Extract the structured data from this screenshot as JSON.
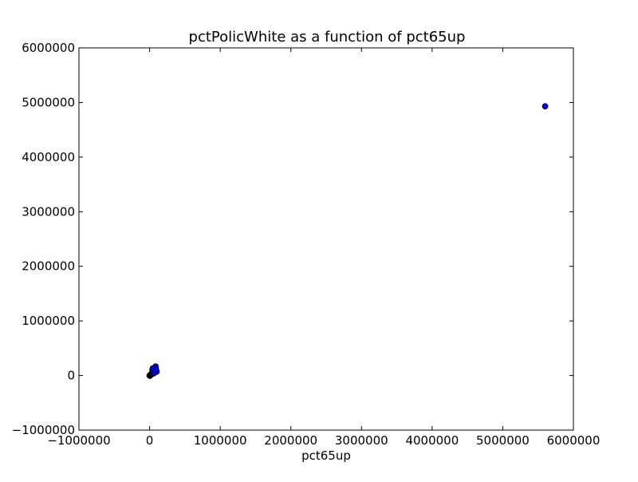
{
  "chart_data": {
    "type": "scatter",
    "title": "pctPolicWhite as a function of pct65up",
    "xlabel": "pct65up",
    "ylabel": "",
    "xlim": [
      -1000000,
      6000000
    ],
    "ylim": [
      -1000000,
      6000000
    ],
    "x_ticks": [
      -1000000,
      0,
      1000000,
      2000000,
      3000000,
      4000000,
      5000000,
      6000000
    ],
    "y_ticks": [
      -1000000,
      0,
      1000000,
      2000000,
      3000000,
      4000000,
      5000000,
      6000000
    ],
    "x_tick_labels": [
      "−1000000",
      "0",
      "1000000",
      "2000000",
      "3000000",
      "4000000",
      "5000000",
      "6000000"
    ],
    "y_tick_labels": [
      "−1000000",
      "0",
      "1000000",
      "2000000",
      "3000000",
      "4000000",
      "5000000",
      "6000000"
    ],
    "grid": false,
    "marker_color": "#0000ff",
    "marker_edge_color": "#000000",
    "points": [
      {
        "x": 5600000,
        "y": 4930000
      },
      {
        "x": 0,
        "y": 0
      },
      {
        "x": 5000,
        "y": -5000
      },
      {
        "x": 8000,
        "y": 5000
      },
      {
        "x": 12000,
        "y": 8000
      },
      {
        "x": 15000,
        "y": 15000
      },
      {
        "x": 20000,
        "y": 20000
      },
      {
        "x": 25000,
        "y": 25000
      },
      {
        "x": 30000,
        "y": 35000
      },
      {
        "x": 35000,
        "y": 40000
      },
      {
        "x": 40000,
        "y": 50000
      },
      {
        "x": 45000,
        "y": 60000
      },
      {
        "x": 50000,
        "y": 70000
      },
      {
        "x": 55000,
        "y": 80000
      },
      {
        "x": 60000,
        "y": 95000
      },
      {
        "x": 65000,
        "y": 110000
      },
      {
        "x": 70000,
        "y": 120000
      },
      {
        "x": 75000,
        "y": 135000
      },
      {
        "x": 80000,
        "y": 150000
      },
      {
        "x": 85000,
        "y": 165000
      },
      {
        "x": 50000,
        "y": 120000
      },
      {
        "x": 40000,
        "y": 100000
      },
      {
        "x": 90000,
        "y": 90000
      },
      {
        "x": 95000,
        "y": 80000
      },
      {
        "x": 100000,
        "y": 70000
      },
      {
        "x": 60000,
        "y": 40000
      },
      {
        "x": 70000,
        "y": 60000
      },
      {
        "x": 80000,
        "y": 85000
      },
      {
        "x": 90000,
        "y": 120000
      },
      {
        "x": 45000,
        "y": 130000
      }
    ]
  }
}
